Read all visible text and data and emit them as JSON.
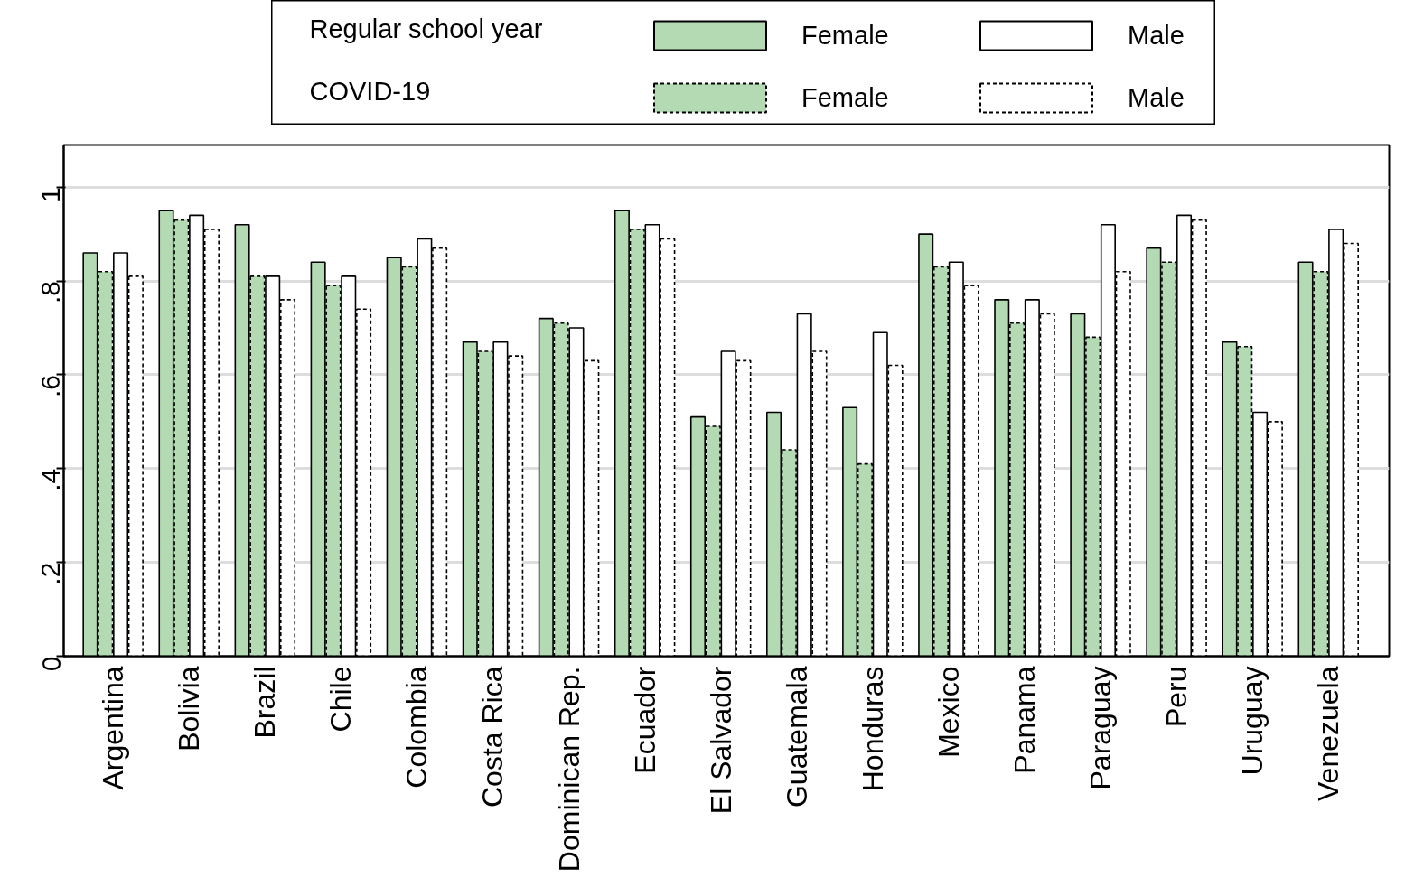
{
  "chart_data": {
    "type": "bar",
    "categories": [
      "Argentina",
      "Bolivia",
      "Brazil",
      "Chile",
      "Colombia",
      "Costa Rica",
      "Dominican Rep.",
      "Ecuador",
      "El Salvador",
      "Guatemala",
      "Honduras",
      "Mexico",
      "Panama",
      "Paraguay",
      "Peru",
      "Uruguay",
      "Venezuela"
    ],
    "series": [
      {
        "name": "Female",
        "color": "#b4dab4",
        "line_style": "solid",
        "values": [
          0.86,
          0.95,
          0.92,
          0.84,
          0.85,
          0.67,
          0.72,
          0.95,
          0.51,
          0.52,
          0.53,
          0.9,
          0.76,
          0.73,
          0.87,
          0.67,
          0.84
        ]
      },
      {
        "name": "Female",
        "color": "#b4dab4",
        "line_style": "dashed",
        "values": [
          0.82,
          0.93,
          0.81,
          0.79,
          0.83,
          0.65,
          0.71,
          0.91,
          0.49,
          0.44,
          0.41,
          0.83,
          0.71,
          0.68,
          0.84,
          0.66,
          0.82
        ]
      },
      {
        "name": "Male",
        "color": "#ffffff",
        "line_style": "solid",
        "values": [
          0.86,
          0.94,
          0.81,
          0.81,
          0.89,
          0.67,
          0.7,
          0.92,
          0.65,
          0.73,
          0.69,
          0.84,
          0.76,
          0.92,
          0.94,
          0.52,
          0.91
        ]
      },
      {
        "name": "Male",
        "color": "#ffffff",
        "line_style": "dashed",
        "values": [
          0.81,
          0.91,
          0.76,
          0.74,
          0.87,
          0.64,
          0.63,
          0.89,
          0.63,
          0.65,
          0.62,
          0.79,
          0.73,
          0.82,
          0.93,
          0.5,
          0.88
        ]
      }
    ],
    "annotations": [
      "Regular school year",
      "COVID-19"
    ],
    "ylim": [
      0,
      1.09
    ],
    "yticks": [
      0,
      {
        "value": 0.2,
        "label": ".2"
      },
      {
        "value": 0.4,
        "label": ".4"
      },
      {
        "value": 0.6,
        "label": ".6"
      },
      {
        "value": 0.8,
        "label": ".8"
      },
      1
    ],
    "grid": "y",
    "legend": "top"
  }
}
